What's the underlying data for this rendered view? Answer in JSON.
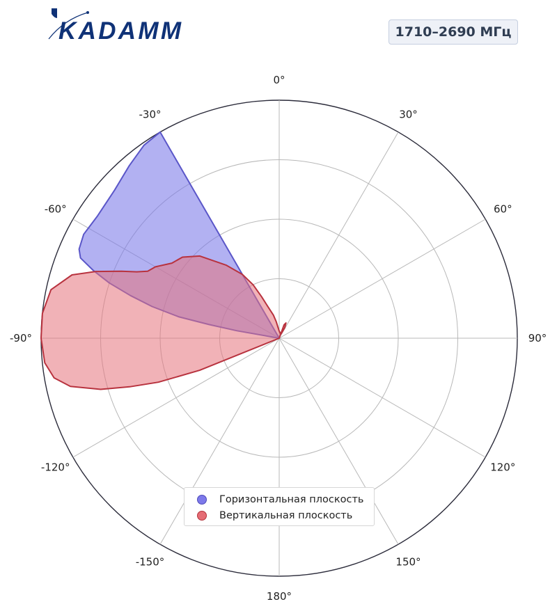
{
  "logo": {
    "text": "KADAMM"
  },
  "frequency_badge": "1710–2690 МГц",
  "colors": {
    "horizontal": "#5a56c8",
    "horizontal_fill": "#7b78e8",
    "vertical": "#b8323e",
    "vertical_fill": "#e5737b",
    "logo": "#0f3277"
  },
  "legend": {
    "items": [
      {
        "label": "Горизонтальная плоскость",
        "color": "#6d68e0"
      },
      {
        "label": "Вертикальная плоскость",
        "color": "#e0646d"
      }
    ]
  },
  "chart_data": {
    "type": "polar-area",
    "theta_direction": "clockwise",
    "theta_zero": "top",
    "angular_ticks": [
      "0°",
      "30°",
      "60°",
      "90°",
      "120°",
      "150°",
      "180°",
      "-150°",
      "-120°",
      "-90°",
      "-60°",
      "-30°"
    ],
    "radial_rings": [
      0.25,
      0.5,
      0.75,
      1.0
    ],
    "rmax": 1.0,
    "grid": true,
    "legend_position": "bottom-center",
    "series": [
      {
        "name": "Горизонтальная плоскость",
        "points": [
          [
            0,
            0
          ],
          [
            -30,
            1.0
          ],
          [
            -35,
            0.99
          ],
          [
            -41,
            0.96
          ],
          [
            -48,
            0.93
          ],
          [
            -56,
            0.92
          ],
          [
            -62,
            0.93
          ],
          [
            -66,
            0.92
          ],
          [
            -68,
            0.9
          ],
          [
            -70,
            0.83
          ],
          [
            -72,
            0.75
          ],
          [
            -74,
            0.65
          ],
          [
            -76,
            0.55
          ],
          [
            -78,
            0.43
          ],
          [
            -79,
            0.3
          ],
          [
            -80,
            0.18
          ],
          [
            -80,
            0
          ]
        ]
      },
      {
        "name": "Вертикальная плоскость",
        "points": [
          [
            0,
            0
          ],
          [
            20,
            0.06
          ],
          [
            24,
            0.07
          ],
          [
            28,
            0.05
          ],
          [
            24,
            0.02
          ],
          [
            15,
            0.02
          ],
          [
            0,
            0.03
          ],
          [
            -10,
            0.07
          ],
          [
            -14,
            0.1
          ],
          [
            -20,
            0.145
          ],
          [
            -23,
            0.19
          ],
          [
            -26,
            0.25
          ],
          [
            -30,
            0.31
          ],
          [
            -36,
            0.38
          ],
          [
            -44,
            0.48
          ],
          [
            -50,
            0.53
          ],
          [
            -55,
            0.55
          ],
          [
            -60,
            0.6
          ],
          [
            -63,
            0.62
          ],
          [
            -65,
            0.66
          ],
          [
            -67,
            0.72
          ],
          [
            -70,
            0.82
          ],
          [
            -73,
            0.91
          ],
          [
            -78,
            0.98
          ],
          [
            -84,
            1.0
          ],
          [
            -90,
            1.0
          ],
          [
            -96,
            0.99
          ],
          [
            -100,
            0.96
          ],
          [
            -103,
            0.9
          ],
          [
            -106,
            0.78
          ],
          [
            -108,
            0.66
          ],
          [
            -110,
            0.54
          ],
          [
            -112,
            0.36
          ],
          [
            -112,
            0
          ]
        ]
      }
    ]
  }
}
